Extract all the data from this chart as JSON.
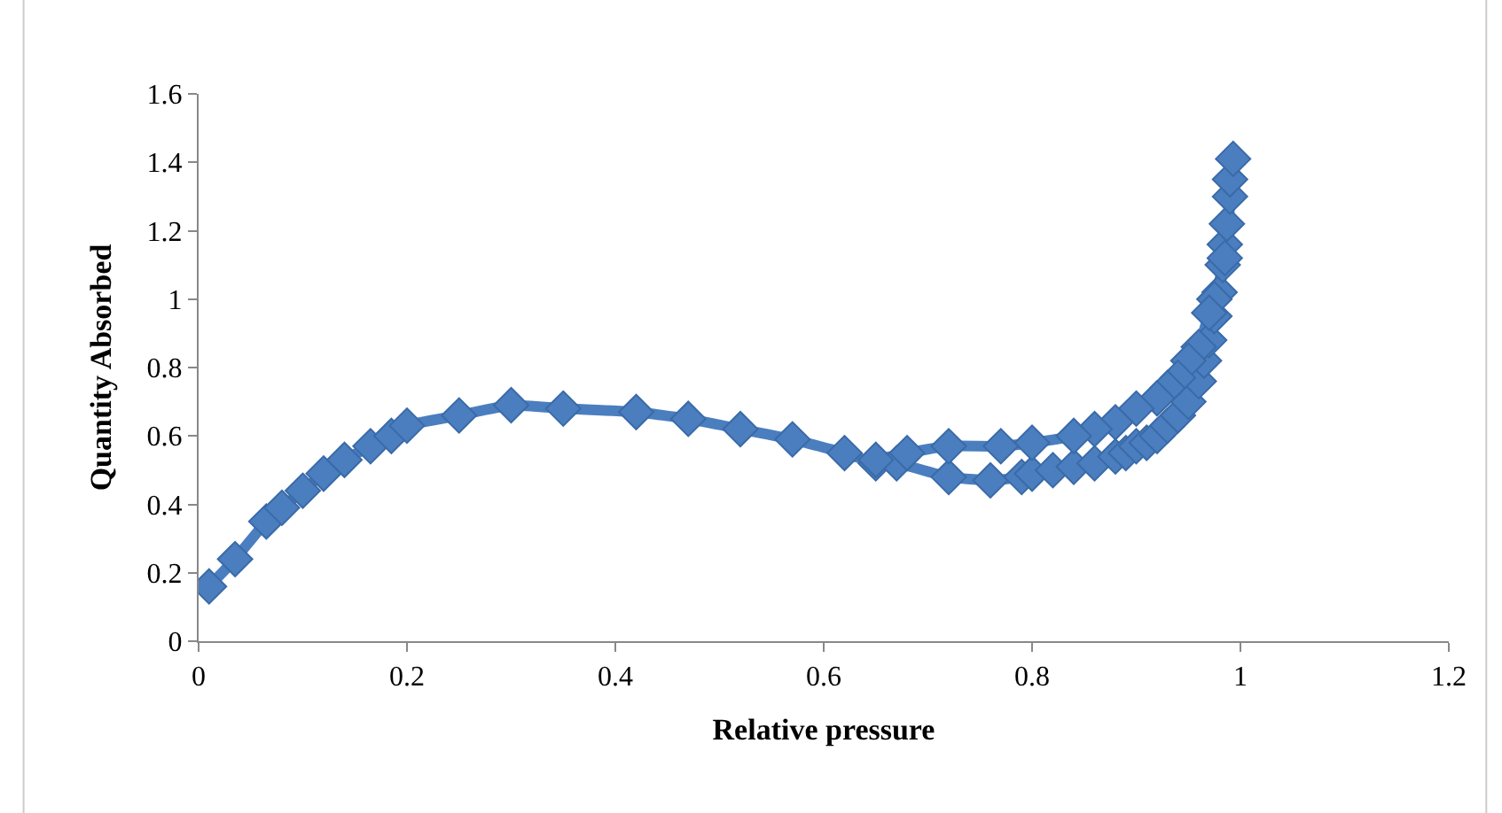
{
  "chart_data": {
    "type": "line",
    "xlabel": "Relative pressure",
    "ylabel": "Quantity Absorbed",
    "xlim": [
      0,
      1.2
    ],
    "xticks": [
      0,
      0.2,
      0.4,
      0.6,
      0.8,
      1,
      1.2
    ],
    "ylim": [
      0,
      1.6
    ],
    "yticks": [
      0,
      0.2,
      0.4,
      0.6,
      0.8,
      1,
      1.2,
      1.4,
      1.6
    ],
    "marker": "diamond",
    "line_style": "solid",
    "series": [
      {
        "color": "#4a7ebf",
        "x": [
          0.01,
          0.035,
          0.065,
          0.08,
          0.1,
          0.12,
          0.14,
          0.165,
          0.185,
          0.2,
          0.25,
          0.3,
          0.35,
          0.42,
          0.47,
          0.52,
          0.57,
          0.62,
          0.65,
          0.67,
          0.72,
          0.76,
          0.79,
          0.8,
          0.82,
          0.84,
          0.86,
          0.88,
          0.89,
          0.9,
          0.91,
          0.92,
          0.93,
          0.94,
          0.95,
          0.96,
          0.965,
          0.97,
          0.975,
          0.98,
          0.983,
          0.985,
          0.987,
          0.99,
          0.99,
          0.993,
          0.985,
          0.975,
          0.97,
          0.96,
          0.95,
          0.94,
          0.93,
          0.92,
          0.9,
          0.88,
          0.86,
          0.84,
          0.8,
          0.77,
          0.72,
          0.68,
          0.65
        ],
        "values": [
          0.16,
          0.24,
          0.35,
          0.39,
          0.44,
          0.49,
          0.53,
          0.57,
          0.6,
          0.63,
          0.66,
          0.69,
          0.68,
          0.67,
          0.65,
          0.62,
          0.59,
          0.55,
          0.52,
          0.52,
          0.48,
          0.47,
          0.48,
          0.49,
          0.5,
          0.51,
          0.52,
          0.54,
          0.55,
          0.57,
          0.58,
          0.6,
          0.63,
          0.66,
          0.7,
          0.76,
          0.82,
          0.88,
          0.95,
          1.02,
          1.1,
          1.16,
          1.22,
          1.3,
          1.35,
          1.41,
          1.12,
          1.0,
          0.96,
          0.86,
          0.82,
          0.77,
          0.74,
          0.71,
          0.68,
          0.64,
          0.62,
          0.6,
          0.58,
          0.57,
          0.57,
          0.55,
          0.53
        ]
      }
    ]
  }
}
